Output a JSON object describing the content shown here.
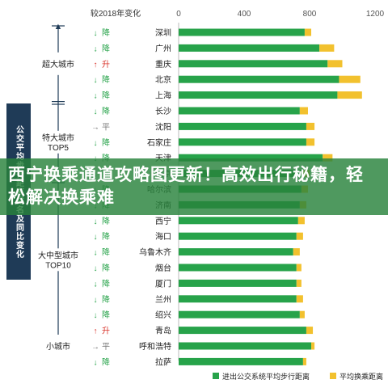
{
  "banner": {
    "title": "西宁换乘通道攻略图更新！高效出行秘籍，轻松解决换乘难"
  },
  "side_label": "公交平均步行距离排名及同比变化",
  "change_column_header": "较2018年变化",
  "colors": {
    "walk": "#27a34a",
    "transfer": "#f2c12e",
    "down_arrow": "#27a34a",
    "up_arrow": "#d9342b",
    "flat_arrow": "#777777",
    "bracket": "#1f3b57"
  },
  "groups": [
    {
      "label": "超大城市",
      "start": 0,
      "end": 4
    },
    {
      "label": "特大城市TOP5",
      "start": 5,
      "end": 9
    },
    {
      "label": "大中型城市TOP10",
      "start": 10,
      "end": 19
    },
    {
      "label": "小城市",
      "start": 20,
      "end": 20
    }
  ],
  "chart_data": {
    "type": "bar",
    "orientation": "horizontal",
    "stacked": true,
    "categories": [
      "深圳",
      "广州",
      "重庆",
      "北京",
      "上海",
      "长沙",
      "沈阳",
      "石家庄",
      "天津",
      "南京",
      "哈尔滨",
      "济南",
      "西宁",
      "海口",
      "乌鲁木齐",
      "烟台",
      "厦门",
      "兰州",
      "绍兴",
      "青岛",
      "呼和浩特",
      "拉萨"
    ],
    "change": [
      "降",
      "降",
      "升",
      "降",
      "降",
      "降",
      "平",
      "降",
      "降",
      "降",
      "降",
      "降",
      "降",
      "降",
      "降",
      "降",
      "降",
      "降",
      "降",
      "升",
      "平",
      "降"
    ],
    "change_icon": [
      "down-arrow",
      "down-arrow",
      "up-arrow",
      "down-arrow",
      "down-arrow",
      "down-arrow",
      "flat-arrow",
      "down-arrow",
      "down-arrow",
      "down-arrow",
      "down-arrow",
      "down-arrow",
      "down-arrow",
      "down-arrow",
      "down-arrow",
      "down-arrow",
      "down-arrow",
      "down-arrow",
      "down-arrow",
      "up-arrow",
      "flat-arrow",
      "down-arrow"
    ],
    "series": [
      {
        "name": "进出公交系统平均步行距离",
        "values": [
          770,
          860,
          910,
          980,
          970,
          740,
          780,
          780,
          880,
          760,
          750,
          740,
          730,
          720,
          700,
          720,
          720,
          720,
          740,
          780,
          810,
          760
        ]
      },
      {
        "name": "平均换乘距离",
        "values": [
          40,
          90,
          90,
          130,
          150,
          50,
          50,
          50,
          60,
          40,
          40,
          40,
          40,
          40,
          40,
          30,
          30,
          40,
          30,
          40,
          20,
          20
        ]
      }
    ],
    "xlim": [
      0,
      1200
    ],
    "xticks": [
      0,
      400,
      800,
      1200
    ],
    "legend": "bottom",
    "grid": false
  }
}
